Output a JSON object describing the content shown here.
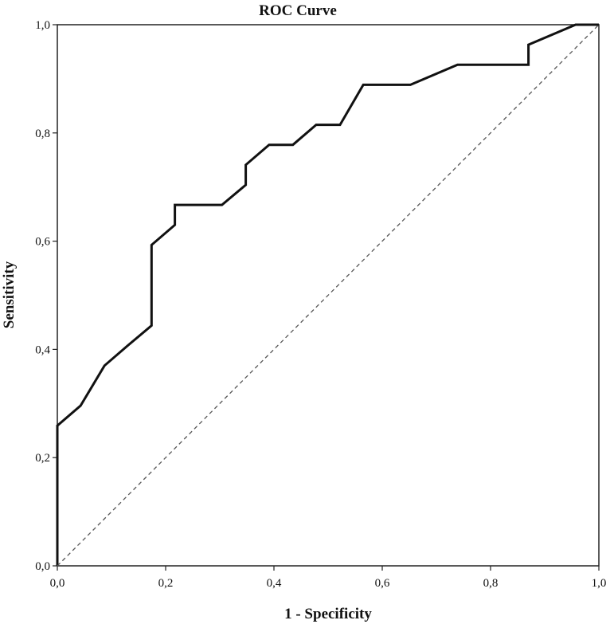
{
  "chart_data": {
    "type": "line",
    "title": "ROC Curve",
    "xlabel": "1 - Specificity",
    "ylabel": "Sensitivity",
    "xlim": [
      0,
      1
    ],
    "ylim": [
      0,
      1
    ],
    "grid": false,
    "x_ticks": [
      "0,0",
      "0,2",
      "0,4",
      "0,6",
      "0,8",
      "1,0"
    ],
    "y_ticks": [
      "0,0",
      "0,2",
      "0,4",
      "0,6",
      "0,8",
      "1,0"
    ],
    "series": [
      {
        "style": "solid",
        "color": "#111111",
        "x": [
          0,
          0,
          0.043,
          0.087,
          0.13,
          0.174,
          0.174,
          0.217,
          0.217,
          0.304,
          0.348,
          0.348,
          0.391,
          0.435,
          0.478,
          0.522,
          0.565,
          0.652,
          0.739,
          0.87,
          0.87,
          0.957,
          1.0
        ],
        "y": [
          0,
          0.259,
          0.296,
          0.37,
          0.407,
          0.444,
          0.593,
          0.63,
          0.667,
          0.667,
          0.704,
          0.741,
          0.778,
          0.778,
          0.815,
          0.815,
          0.889,
          0.889,
          0.926,
          0.926,
          0.963,
          1.0,
          1.0
        ]
      },
      {
        "style": "dashed",
        "color": "#555555",
        "x": [
          0,
          1
        ],
        "y": [
          0,
          1
        ]
      }
    ]
  }
}
